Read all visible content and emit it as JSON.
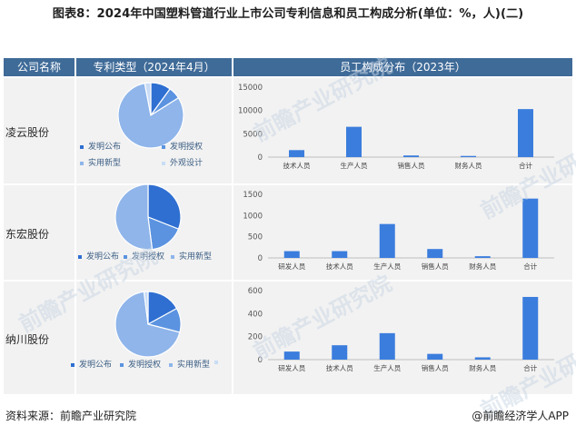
{
  "title": "图表8：2024年中国塑料管道行业上市公司专利信息和员工构成分析(单位：%，人)(二)",
  "headers": {
    "company": "公司名称",
    "patent": "专利类型（2024年4月）",
    "staff": "员工构成分布（2023年）"
  },
  "source": "资料来源：前瞻产业研究院",
  "credit": "@前瞻经济学人APP",
  "watermark": "前瞻产业研究院",
  "colors": {
    "header_bg": "#3f6b98",
    "bar": "#3b7ddd",
    "pie": [
      "#2f6fd1",
      "#5b93e0",
      "#8fb5ea",
      "#c9dcf5"
    ]
  },
  "chart_data": [
    {
      "company": "凌云股份",
      "pie": {
        "type": "pie",
        "slices": [
          {
            "name": "发明公布",
            "value": 10
          },
          {
            "name": "发明授权",
            "value": 6
          },
          {
            "name": "实用新型",
            "value": 81
          },
          {
            "name": "外观设计",
            "value": 3
          }
        ]
      },
      "bar": {
        "type": "bar",
        "categories": [
          "技术人员",
          "生产人员",
          "销售人员",
          "财务人员",
          "合计"
        ],
        "values": [
          1500,
          6500,
          350,
          250,
          10300
        ],
        "ylim": [
          0,
          15000
        ],
        "yticks": [
          "0",
          "5000",
          "10000",
          "15000"
        ]
      }
    },
    {
      "company": "东宏股份",
      "pie": {
        "type": "pie",
        "slices": [
          {
            "name": "发明公布",
            "value": 31
          },
          {
            "name": "发明授权",
            "value": 17
          },
          {
            "name": "实用新型",
            "value": 52
          }
        ]
      },
      "bar": {
        "type": "bar",
        "categories": [
          "研发人员",
          "技术人员",
          "生产人员",
          "销售人员",
          "财务人员",
          "合计"
        ],
        "values": [
          160,
          160,
          800,
          210,
          40,
          1400
        ],
        "ylim": [
          0,
          1500
        ],
        "yticks": [
          "0",
          "500",
          "1000",
          "1500"
        ]
      }
    },
    {
      "company": "纳川股份",
      "pie": {
        "type": "pie",
        "slices": [
          {
            "name": "发明公布",
            "value": 17
          },
          {
            "name": "发明授权",
            "value": 12
          },
          {
            "name": "实用新型",
            "value": 69
          },
          {
            "name": "",
            "value": 2
          }
        ]
      },
      "bar": {
        "type": "bar",
        "categories": [
          "研发人员",
          "技术人员",
          "生产人员",
          "销售人员",
          "财务人员",
          "合计"
        ],
        "values": [
          70,
          125,
          230,
          50,
          20,
          545
        ],
        "ylim": [
          0,
          600
        ],
        "yticks": [
          "0",
          "200",
          "400",
          "600"
        ]
      }
    }
  ]
}
